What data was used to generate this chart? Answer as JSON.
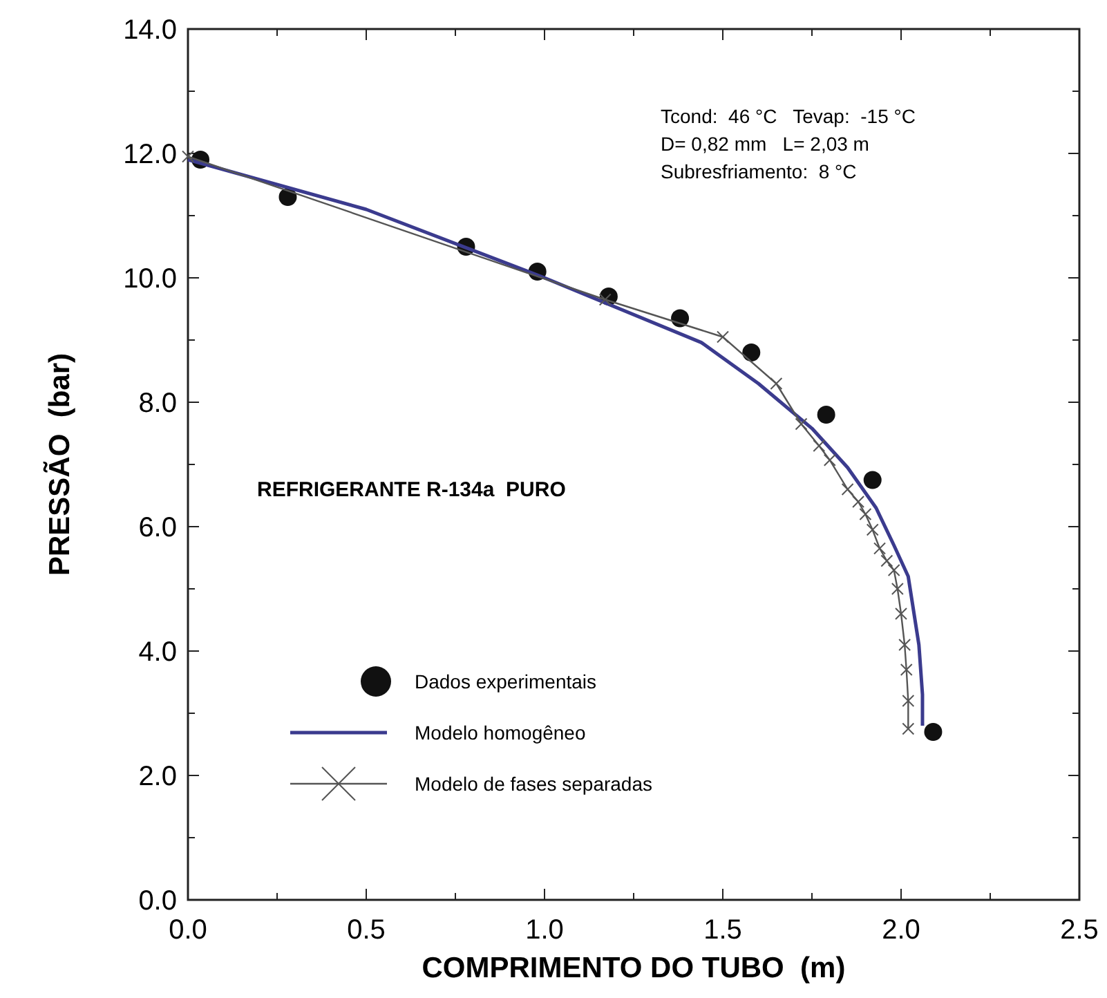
{
  "chart_data": {
    "type": "scatter",
    "xlabel": "COMPRIMENTO DO TUBO  (m)",
    "ylabel": "PRESSÃO  (bar)",
    "xlim": [
      0,
      2.5
    ],
    "ylim": [
      0,
      14
    ],
    "xticks": [
      {
        "value": 0,
        "label": "0.0"
      },
      {
        "value": 0.25,
        "label": null
      },
      {
        "value": 0.5,
        "label": "0.5"
      },
      {
        "value": 0.75,
        "label": null
      },
      {
        "value": 1,
        "label": "1.0"
      },
      {
        "value": 1.25,
        "label": null
      },
      {
        "value": 1.5,
        "label": "1.5"
      },
      {
        "value": 1.75,
        "label": null
      },
      {
        "value": 2,
        "label": "2.0"
      },
      {
        "value": 2.25,
        "label": null
      },
      {
        "value": 2.5,
        "label": "2.5"
      }
    ],
    "yticks": [
      {
        "value": 0,
        "label": "0.0"
      },
      {
        "value": 1,
        "label": null
      },
      {
        "value": 2,
        "label": "2.0"
      },
      {
        "value": 3,
        "label": null
      },
      {
        "value": 4,
        "label": "4.0"
      },
      {
        "value": 5,
        "label": null
      },
      {
        "value": 6,
        "label": "6.0"
      },
      {
        "value": 7,
        "label": null
      },
      {
        "value": 8,
        "label": "8.0"
      },
      {
        "value": 9,
        "label": null
      },
      {
        "value": 10,
        "label": "10.0"
      },
      {
        "value": 11,
        "label": null
      },
      {
        "value": 12,
        "label": "12.0"
      },
      {
        "value": 13,
        "label": null
      },
      {
        "value": 14,
        "label": "14.0"
      }
    ],
    "grid": false,
    "legend": "bottom left",
    "annotations": [
      "Tcond:  46 °C   Tevap:  -15 °C",
      "D= 0,82 mm   L= 2,03 m",
      "Subresfriamento:  8 °C",
      "REFRIGERANTE R-134a  PURO"
    ],
    "series": [
      {
        "name": "Dados experimentais",
        "marker": "circle",
        "color": "#111111",
        "x": [
          0.035,
          0.28,
          0.78,
          0.98,
          1.18,
          1.38,
          1.58,
          1.79,
          1.92,
          2.09
        ],
        "values": [
          11.9,
          11.3,
          10.5,
          10.1,
          9.7,
          9.35,
          8.8,
          7.8,
          6.75,
          2.7
        ]
      },
      {
        "name": "Modelo homogêneo",
        "type": "line",
        "marker": "none",
        "color": "#3b3b8e",
        "x": [
          0,
          0.5,
          1.0,
          1.44,
          1.6,
          1.75,
          1.85,
          1.93,
          1.98,
          2.02,
          2.05,
          2.06,
          2.06
        ],
        "values": [
          11.9,
          11.1,
          10.0,
          8.96,
          8.3,
          7.58,
          6.95,
          6.3,
          5.7,
          5.2,
          4.1,
          3.3,
          2.8
        ]
      },
      {
        "name": "Modelo de fases separadas",
        "type": "line",
        "marker": "cross",
        "color": "#555555",
        "x": [
          0,
          1.17,
          1.5,
          1.65,
          1.72,
          1.77,
          1.8,
          1.85,
          1.88,
          1.9,
          1.92,
          1.94,
          1.96,
          1.98,
          1.99,
          2.0,
          2.01,
          2.015,
          2.02,
          2.02
        ],
        "values": [
          11.95,
          9.65,
          9.05,
          8.3,
          7.65,
          7.3,
          7.07,
          6.6,
          6.4,
          6.2,
          5.95,
          5.65,
          5.45,
          5.3,
          5.0,
          4.6,
          4.1,
          3.7,
          3.2,
          2.75
        ]
      }
    ]
  }
}
